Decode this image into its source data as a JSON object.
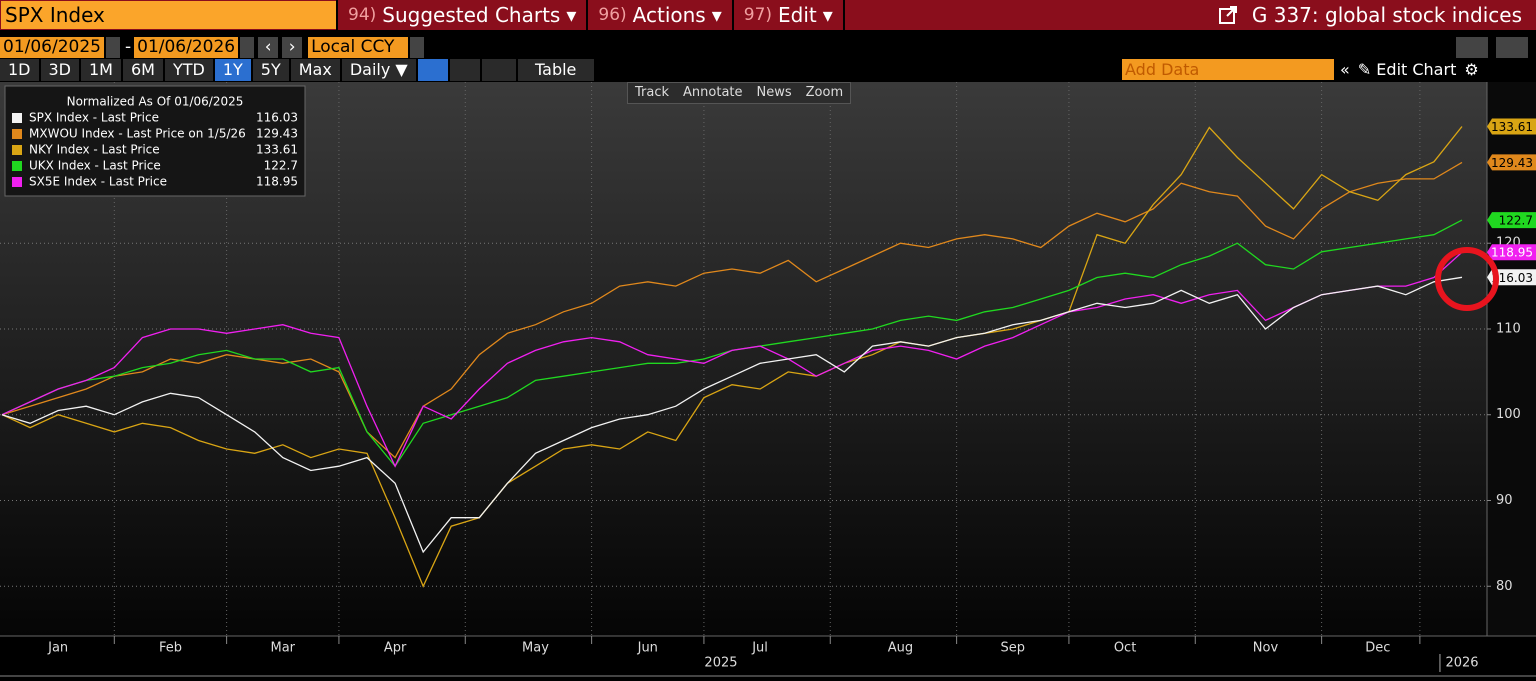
{
  "ui": {
    "security": "SPX Index",
    "menu": [
      {
        "number": "94)",
        "label": "Suggested Charts"
      },
      {
        "number": "96)",
        "label": "Actions"
      },
      {
        "number": "97)",
        "label": "Edit"
      }
    ],
    "page_title": "G 337: global stock indices",
    "start_date": "01/06/2025",
    "date_separator": "-",
    "end_date": "01/06/2026",
    "currency": "Local CCY",
    "ranges": [
      "1D",
      "3D",
      "1M",
      "6M",
      "YTD",
      "1Y",
      "5Y",
      "Max"
    ],
    "frequency": "Daily",
    "table": "Table",
    "add_data": "Add Data",
    "edit_chart": "Edit Chart",
    "tools": [
      "Track",
      "Annotate",
      "News",
      "Zoom"
    ]
  },
  "chart_data": {
    "type": "line",
    "legend_title": "Normalized As Of 01/06/2025",
    "categories": [
      null,
      null,
      "Jan",
      null,
      null,
      null,
      "Feb",
      null,
      null,
      null,
      "Mar",
      null,
      null,
      null,
      "Apr",
      null,
      null,
      null,
      null,
      "May",
      null,
      null,
      null,
      "Jun",
      null,
      null,
      null,
      "Jul",
      null,
      null,
      null,
      null,
      "Aug",
      null,
      null,
      null,
      "Sep",
      null,
      null,
      null,
      "Oct",
      null,
      null,
      null,
      null,
      "Nov",
      null,
      null,
      null,
      "Dec",
      null,
      null,
      null
    ],
    "x_group_labels": [
      "2025",
      "2026"
    ],
    "ylim": [
      74.2,
      138.8
    ],
    "yticks": [
      80,
      90,
      100,
      110,
      120
    ],
    "grid": true,
    "series": [
      {
        "name": "SPX Index - Last Price",
        "color": "#f2f2f2",
        "label_color": "#000000",
        "values": [
          100,
          99,
          100.5,
          101,
          100,
          101.5,
          102.5,
          102,
          100,
          98,
          95,
          93.5,
          94,
          95,
          92,
          84,
          88,
          88,
          92,
          95.5,
          97,
          98.5,
          99.5,
          100,
          101,
          103,
          104.5,
          106,
          106.5,
          107,
          105,
          108,
          108.5,
          108,
          109,
          109.5,
          110.5,
          111,
          112,
          113,
          112.5,
          113,
          114.5,
          113,
          114,
          110,
          112.5,
          114,
          114.5,
          115,
          114,
          115.5,
          116.03
        ]
      },
      {
        "name": "MXWOU Index - Last Price on 1/5/26",
        "color": "#e0881c",
        "label_color": "#000000",
        "values": [
          100,
          101,
          102,
          103,
          104.5,
          105,
          106.5,
          106,
          107,
          106.5,
          106,
          106.5,
          105,
          98,
          95,
          101,
          103,
          107,
          109.5,
          110.5,
          112,
          113,
          115,
          115.5,
          115,
          116.5,
          117,
          116.5,
          118,
          115.5,
          117,
          118.5,
          120,
          119.5,
          120.5,
          121,
          120.5,
          119.5,
          122,
          123.5,
          122.5,
          124,
          127,
          126,
          125.5,
          122,
          120.5,
          124,
          126,
          127,
          127.5,
          127.5,
          129.43
        ]
      },
      {
        "name": "NKY Index - Last Price",
        "color": "#d9a514",
        "label_color": "#000000",
        "values": [
          100,
          98.5,
          100,
          99,
          98,
          99,
          98.5,
          97,
          96,
          95.5,
          96.5,
          95,
          96,
          95.5,
          88,
          80,
          87,
          88,
          92,
          94,
          96,
          96.5,
          96,
          98,
          97,
          102,
          103.5,
          103,
          105,
          104.5,
          106,
          107,
          108.5,
          108,
          109,
          109.5,
          110,
          111,
          112,
          121,
          120,
          124.5,
          128,
          133.5,
          130,
          127,
          124,
          128,
          126,
          125,
          128,
          129.5,
          133.61
        ]
      },
      {
        "name": "UKX Index - Last Price",
        "color": "#20d820",
        "label_color": "#000000",
        "values": [
          100,
          101.5,
          103,
          104,
          104.5,
          105.5,
          106,
          107,
          107.5,
          106.5,
          106.5,
          105,
          105.5,
          98,
          94,
          99,
          100,
          101,
          102,
          104,
          104.5,
          105,
          105.5,
          106,
          106,
          106.5,
          107.5,
          108,
          108.5,
          109,
          109.5,
          110,
          111,
          111.5,
          111,
          112,
          112.5,
          113.5,
          114.5,
          116,
          116.5,
          116,
          117.5,
          118.5,
          120,
          117.5,
          117,
          119,
          119.5,
          120,
          120.5,
          121,
          122.7
        ]
      },
      {
        "name": "SX5E Index - Last Price",
        "color": "#f020f0",
        "label_color": "#ffffff",
        "values": [
          100,
          101.5,
          103,
          104,
          105.5,
          109,
          110,
          110,
          109.5,
          110,
          110.5,
          109.5,
          109,
          101,
          94,
          101,
          99.5,
          103,
          106,
          107.5,
          108.5,
          109,
          108.5,
          107,
          106.5,
          106,
          107.5,
          108,
          106.5,
          104.5,
          106,
          107.5,
          108,
          107.5,
          106.5,
          108,
          109,
          110.5,
          112,
          112.5,
          113.5,
          114,
          113,
          114,
          114.5,
          111,
          112.5,
          114,
          114.5,
          115,
          115,
          116,
          118.95
        ]
      }
    ]
  }
}
